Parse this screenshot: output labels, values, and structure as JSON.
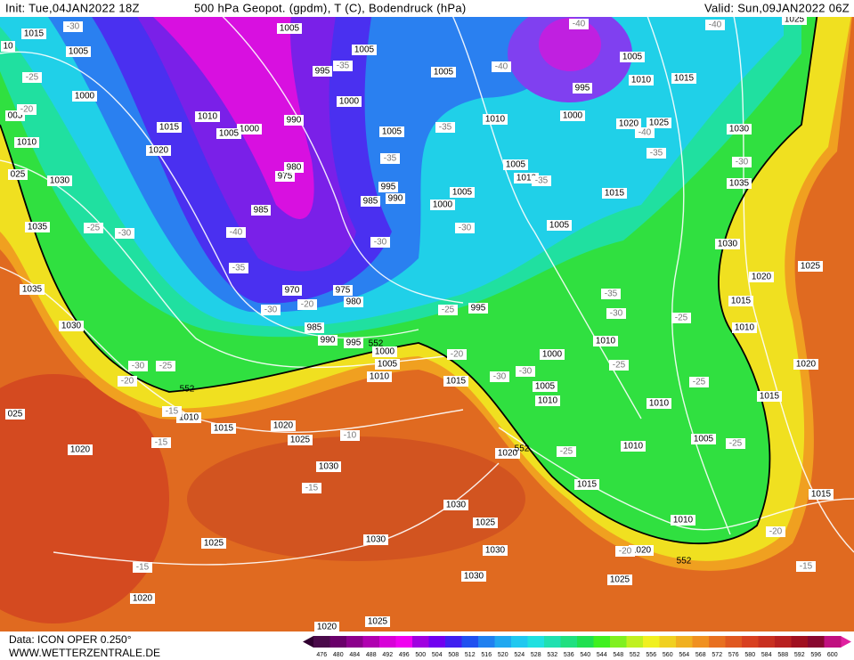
{
  "header": {
    "init": "Init: Tue,04JAN2022 18Z",
    "title": "500 hPa Geopot. (gpdm), T (C), Bodendruck (hPa)",
    "valid": "Valid: Sun,09JAN2022 06Z"
  },
  "footer": {
    "data": "Data: ICON OPER 0.250°",
    "site": "WWW.WETTERZENTRALE.DE"
  },
  "colorbar": {
    "levels": [
      476,
      480,
      484,
      488,
      492,
      496,
      500,
      504,
      508,
      512,
      516,
      520,
      524,
      528,
      532,
      536,
      540,
      544,
      548,
      552,
      556,
      560,
      564,
      568,
      572,
      576,
      580,
      584,
      588,
      592,
      596,
      600
    ],
    "colors": [
      "#4a0a4a",
      "#6a006a",
      "#8c008c",
      "#b000b0",
      "#d800d8",
      "#f000f0",
      "#a000e0",
      "#7000f0",
      "#4020f0",
      "#2050f0",
      "#2080f0",
      "#20a8f0",
      "#20c8f0",
      "#20e0e0",
      "#20e0b0",
      "#20e080",
      "#20e050",
      "#40f020",
      "#80f020",
      "#c0f020",
      "#f0f020",
      "#f0d020",
      "#f0b020",
      "#f09020",
      "#e87020",
      "#e05820",
      "#d84020",
      "#c83020",
      "#b82020",
      "#a01020",
      "#880830",
      "#c01080"
    ]
  },
  "isobar_labels": [
    "1015",
    "1005",
    "1000",
    "1010",
    "1015",
    "1020",
    "1010",
    "1030",
    "1035",
    "1035",
    "1030",
    "005",
    "025",
    "025",
    "1020",
    "1010",
    "1015",
    "1020",
    "1025",
    "1030",
    "1030",
    "1025",
    "1020",
    "1020",
    "1025",
    "1030",
    "1025",
    "1030",
    "1030",
    "1020",
    "1015",
    "1020",
    "1025",
    "1010",
    "1010",
    "1005",
    "1010",
    "1010",
    "1005",
    "1000",
    "1010",
    "995",
    "1015",
    "1010",
    "1005",
    "1000",
    "995",
    "990",
    "985",
    "970",
    "975",
    "980",
    "985",
    "975",
    "980",
    "990",
    "1000",
    "1005",
    "995",
    "1000",
    "1005",
    "1005",
    "1005",
    "995",
    "990",
    "985",
    "1000",
    "1005",
    "1005",
    "1010",
    "1005",
    "1010",
    "1005",
    "1015",
    "1000",
    "995",
    "1005",
    "1010",
    "1015",
    "1020",
    "1025",
    "1030",
    "1035",
    "1030",
    "1025",
    "1020",
    "1015",
    "1010",
    "1020",
    "1015",
    "1015",
    "1025",
    "10"
  ],
  "height_labels": [
    "552",
    "552",
    "552",
    "552"
  ],
  "temperature_labels": [
    "-30",
    "-25",
    "-20",
    "-25",
    "-30",
    "-40",
    "-35",
    "-30",
    "-20",
    "-35",
    "-35",
    "-30",
    "-35",
    "-30",
    "-40",
    "-40",
    "-40",
    "-40",
    "-35",
    "-30",
    "-35",
    "-35",
    "-30",
    "-25",
    "-25",
    "-20",
    "-30",
    "-30",
    "-25",
    "-25",
    "-25",
    "-25",
    "-20",
    "-15",
    "-20",
    "-10",
    "-15",
    "-15",
    "-25",
    "-30",
    "-20",
    "-15",
    "-15"
  ]
}
